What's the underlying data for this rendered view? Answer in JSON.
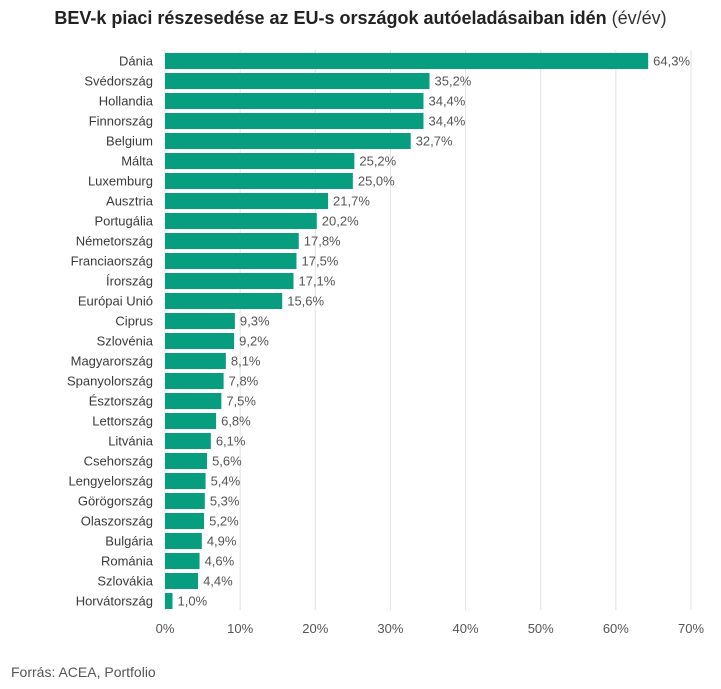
{
  "title": {
    "main": "BEV-k piaci részesedése az EU-s országok autóeladásaiban idén",
    "sub": "(év/év)"
  },
  "source": "Forrás: ACEA, Portfolio",
  "colors": {
    "bar": "#079e7f",
    "grid": "#e2e2e2"
  },
  "chart_data": {
    "type": "bar",
    "orientation": "horizontal",
    "categories": [
      "Dánia",
      "Svédország",
      "Hollandia",
      "Finnország",
      "Belgium",
      "Málta",
      "Luxemburg",
      "Ausztria",
      "Portugália",
      "Németország",
      "Franciaország",
      "Írország",
      "Európai Unió",
      "Ciprus",
      "Szlovénia",
      "Magyarország",
      "Spanyolország",
      "Észtország",
      "Lettország",
      "Litvánia",
      "Csehország",
      "Lengyelország",
      "Görögország",
      "Olaszország",
      "Bulgária",
      "Románia",
      "Szlovákia",
      "Horvátország"
    ],
    "values": [
      64.3,
      35.2,
      34.4,
      34.4,
      32.7,
      25.2,
      25.0,
      21.7,
      20.2,
      17.8,
      17.5,
      17.1,
      15.6,
      9.3,
      9.2,
      8.1,
      7.8,
      7.5,
      6.8,
      6.1,
      5.6,
      5.4,
      5.3,
      5.2,
      4.9,
      4.6,
      4.4,
      1.0
    ],
    "value_labels": [
      "64,3%",
      "35,2%",
      "34,4%",
      "34,4%",
      "32,7%",
      "25,2%",
      "25,0%",
      "21,7%",
      "20,2%",
      "17,8%",
      "17,5%",
      "17,1%",
      "15,6%",
      "9,3%",
      "9,2%",
      "8,1%",
      "7,8%",
      "7,5%",
      "6,8%",
      "6,1%",
      "5,6%",
      "5,4%",
      "5,3%",
      "5,2%",
      "4,9%",
      "4,6%",
      "4,4%",
      "1,0%"
    ],
    "x_ticks": [
      0,
      10,
      20,
      30,
      40,
      50,
      60,
      70
    ],
    "x_tick_labels": [
      "0%",
      "10%",
      "20%",
      "30%",
      "40%",
      "50%",
      "60%",
      "70%"
    ],
    "xlim": [
      0,
      70
    ],
    "grid": true,
    "xlabel": "",
    "ylabel": ""
  }
}
